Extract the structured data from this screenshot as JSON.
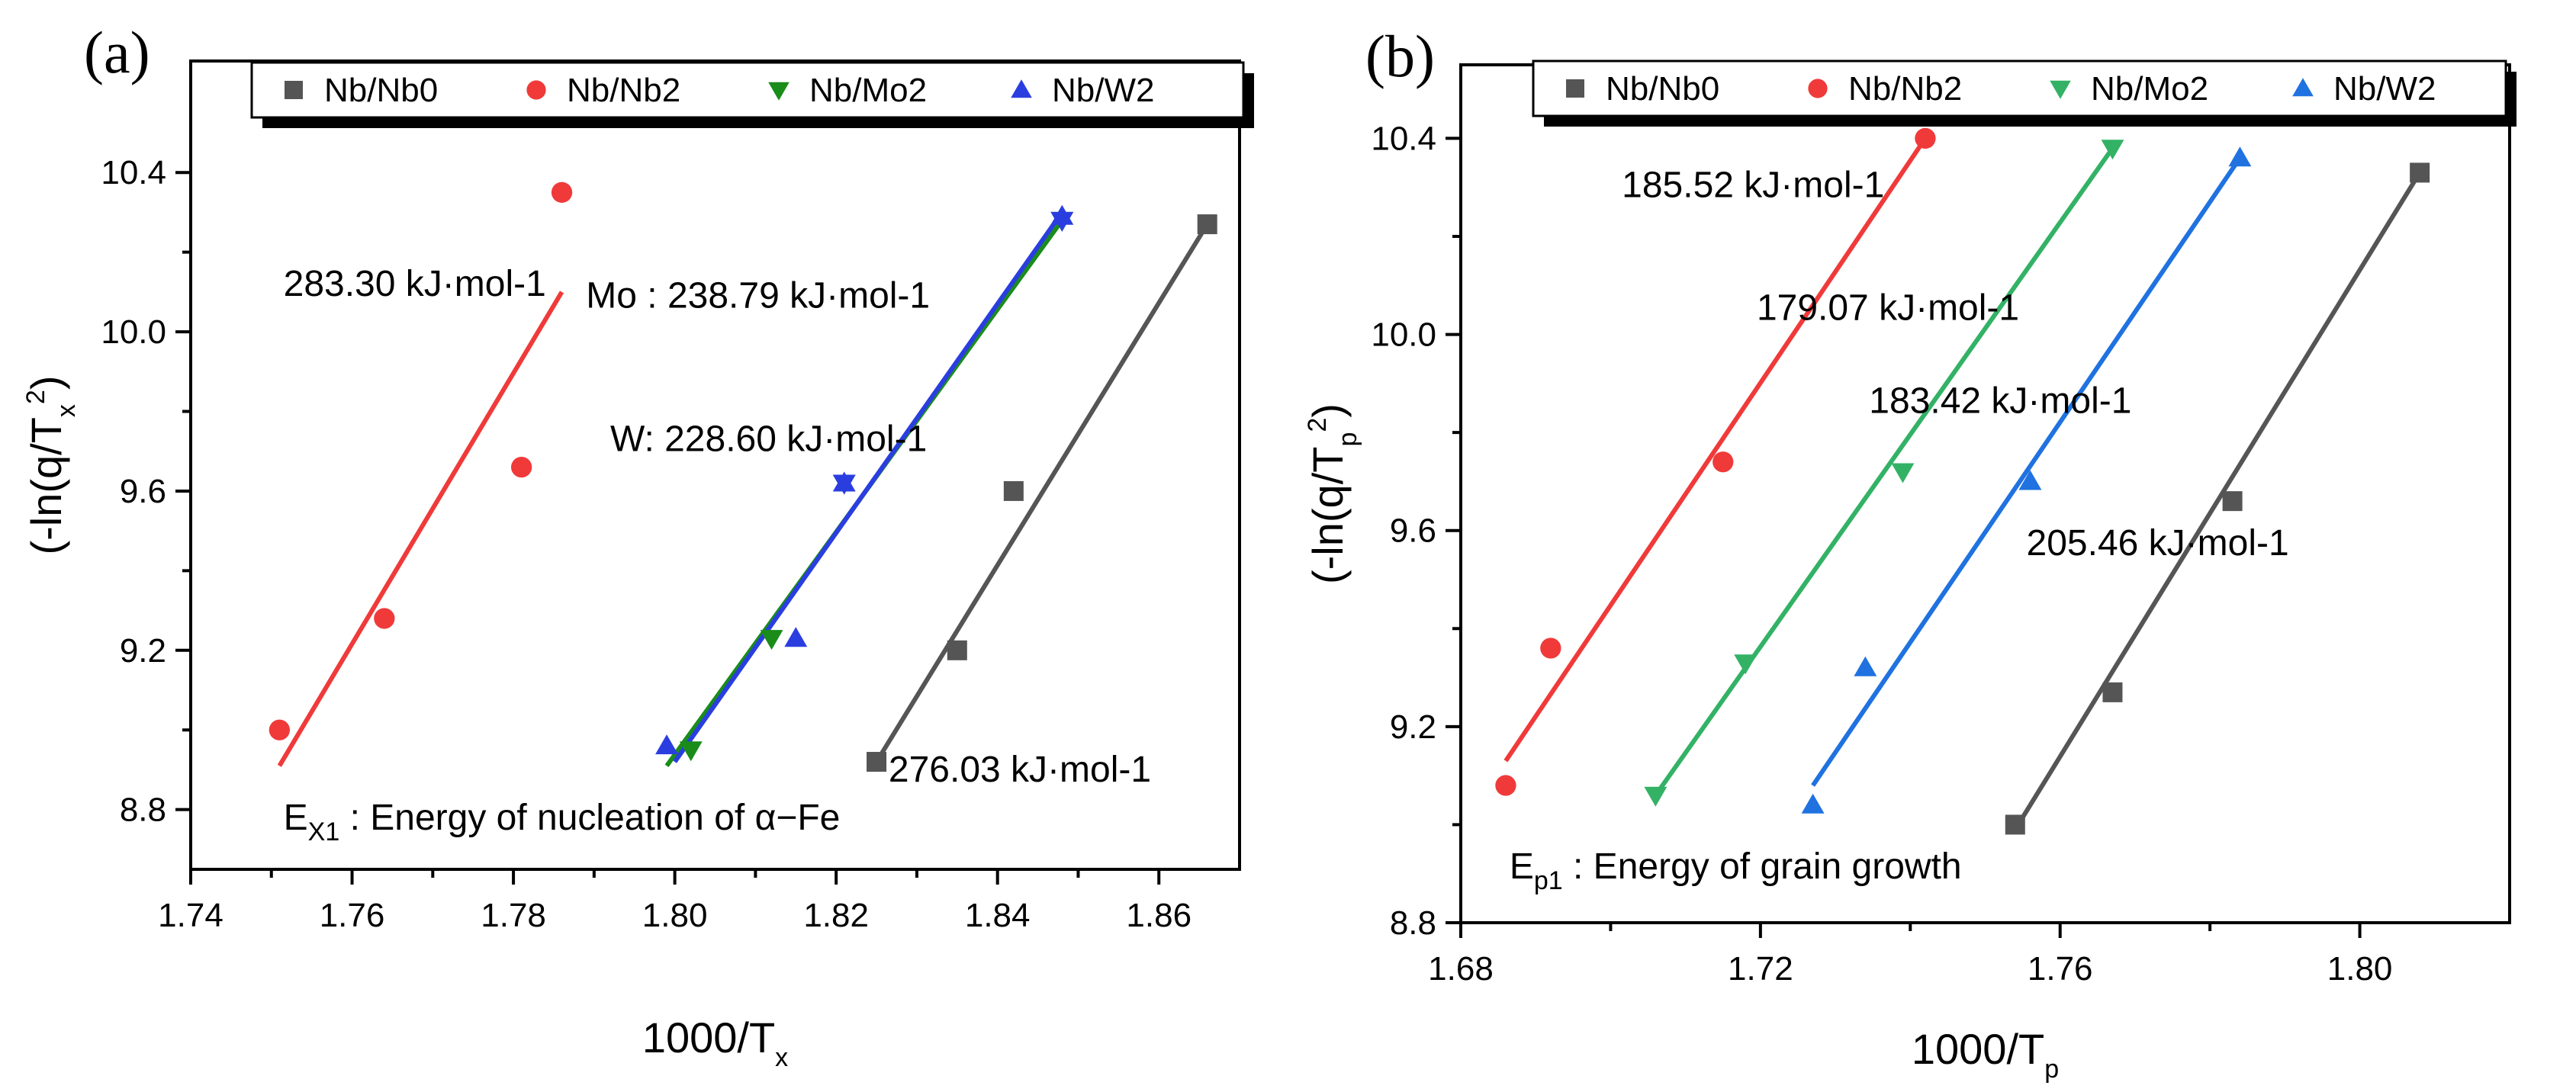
{
  "chart_data": [
    {
      "type": "scatter",
      "panel_label": "(a)",
      "xlabel": "1000/T",
      "xlabel_sub": "x",
      "ylabel_prefix": "(-ln(q/T",
      "ylabel_sup": "2",
      "ylabel_sub": "x",
      "ylabel_suffix": ")",
      "xlim": [
        1.74,
        1.87
      ],
      "ylim": [
        8.65,
        10.68
      ],
      "xticks": [
        1.74,
        1.76,
        1.78,
        1.8,
        1.82,
        1.84,
        1.86
      ],
      "xtick_labels": [
        "1.74",
        "1.76",
        "1.78",
        "1.80",
        "1.82",
        "1.84",
        "1.86"
      ],
      "yticks": [
        8.8,
        9.2,
        9.6,
        10.0,
        10.4
      ],
      "ytick_labels": [
        "8.8",
        "9.2",
        "9.6",
        "10.0",
        "10.4"
      ],
      "legend": {
        "position": "top",
        "entries": [
          {
            "name": "Nb/Nb0",
            "marker": "square",
            "color": "#555555"
          },
          {
            "name": "Nb/Nb2",
            "marker": "circle",
            "color": "#f03a3a"
          },
          {
            "name": "Nb/Mo2",
            "marker": "triangle-down",
            "color": "#1a8c1a"
          },
          {
            "name": "Nb/W2",
            "marker": "triangle-up",
            "color": "#2a3ee0"
          }
        ]
      },
      "series": [
        {
          "name": "Nb/Nb0",
          "marker": "square",
          "color": "#555555",
          "x": [
            1.825,
            1.835,
            1.842,
            1.866
          ],
          "y": [
            8.92,
            9.2,
            9.6,
            10.27
          ],
          "fit": {
            "x": [
              1.825,
              1.866
            ],
            "y": [
              8.92,
              10.27
            ]
          }
        },
        {
          "name": "Nb/Nb2",
          "marker": "circle",
          "color": "#f03a3a",
          "x": [
            1.751,
            1.764,
            1.781,
            1.786
          ],
          "y": [
            9.0,
            9.28,
            9.66,
            10.35
          ],
          "fit": {
            "x": [
              1.751,
              1.786
            ],
            "y": [
              8.91,
              10.1
            ]
          }
        },
        {
          "name": "Nb/Mo2",
          "marker": "triangle-down",
          "color": "#1a8c1a",
          "x": [
            1.802,
            1.812,
            1.821,
            1.848
          ],
          "y": [
            8.95,
            9.23,
            9.62,
            10.28
          ],
          "fit": {
            "x": [
              1.799,
              1.848
            ],
            "y": [
              8.91,
              10.28
            ]
          }
        },
        {
          "name": "Nb/W2",
          "marker": "triangle-up",
          "color": "#2a3ee0",
          "x": [
            1.799,
            1.815,
            1.821,
            1.848
          ],
          "y": [
            8.96,
            9.23,
            9.62,
            10.29
          ],
          "fit": {
            "x": [
              1.8,
              1.848
            ],
            "y": [
              8.92,
              10.3
            ]
          }
        }
      ],
      "annotations": [
        {
          "text": "283.30  kJ·mol-1",
          "x": 1.7515,
          "y": 10.09
        },
        {
          "text": "Mo : 238.79  kJ·mol-1",
          "x": 1.789,
          "y": 10.06
        },
        {
          "text": "W: 228.60 kJ·mol-1",
          "x": 1.792,
          "y": 9.7
        },
        {
          "text": "276.03  kJ·mol-1",
          "x": 1.8265,
          "y": 8.87
        }
      ],
      "footnote": {
        "main": "E",
        "sub": "X1",
        "rest": " : Energy of nucleation of α−Fe",
        "x": 1.7515,
        "y": 8.75
      }
    },
    {
      "type": "scatter",
      "panel_label": "(b)",
      "xlabel": "1000/T",
      "xlabel_sub": "p",
      "ylabel_prefix": "(-ln(q/T",
      "ylabel_sup": "2",
      "ylabel_sub": "p",
      "ylabel_suffix": ")",
      "xlim": [
        1.68,
        1.82
      ],
      "ylim": [
        8.8,
        10.55
      ],
      "xticks": [
        1.68,
        1.72,
        1.76,
        1.8
      ],
      "xtick_labels": [
        "1.68",
        "1.72",
        "1.76",
        "1.80"
      ],
      "yticks": [
        8.8,
        9.2,
        9.6,
        10.0,
        10.4
      ],
      "ytick_labels": [
        "8.8",
        "9.2",
        "9.6",
        "10.0",
        "10.4"
      ],
      "legend": {
        "position": "top",
        "entries": [
          {
            "name": "Nb/Nb0",
            "marker": "square",
            "color": "#555555"
          },
          {
            "name": "Nb/Nb2",
            "marker": "circle",
            "color": "#f03a3a"
          },
          {
            "name": "Nb/Mo2",
            "marker": "triangle-down",
            "color": "#33b266"
          },
          {
            "name": "Nb/W2",
            "marker": "triangle-up",
            "color": "#1f72e0"
          }
        ]
      },
      "series": [
        {
          "name": "Nb/Nb0",
          "marker": "square",
          "color": "#555555",
          "x": [
            1.754,
            1.767,
            1.783,
            1.808
          ],
          "y": [
            9.0,
            9.27,
            9.66,
            10.33
          ],
          "fit": {
            "x": [
              1.754,
              1.808
            ],
            "y": [
              8.99,
              10.33
            ]
          }
        },
        {
          "name": "Nb/Nb2",
          "marker": "circle",
          "color": "#f03a3a",
          "x": [
            1.686,
            1.692,
            1.715,
            1.742
          ],
          "y": [
            9.08,
            9.36,
            9.74,
            10.4
          ],
          "fit": {
            "x": [
              1.686,
              1.742
            ],
            "y": [
              9.13,
              10.4
            ]
          }
        },
        {
          "name": "Nb/Mo2",
          "marker": "triangle-down",
          "color": "#33b266",
          "x": [
            1.706,
            1.718,
            1.739,
            1.767
          ],
          "y": [
            9.06,
            9.33,
            9.72,
            10.38
          ],
          "fit": {
            "x": [
              1.706,
              1.767
            ],
            "y": [
              9.06,
              10.38
            ]
          }
        },
        {
          "name": "Nb/W2",
          "marker": "triangle-up",
          "color": "#1f72e0",
          "x": [
            1.727,
            1.734,
            1.756,
            1.784
          ],
          "y": [
            9.04,
            9.32,
            9.7,
            10.36
          ],
          "fit": {
            "x": [
              1.727,
              1.784
            ],
            "y": [
              9.08,
              10.36
            ]
          }
        }
      ],
      "annotations": [
        {
          "text": "185.52  kJ·mol-1",
          "x": 1.7015,
          "y": 10.28
        },
        {
          "text": "179.07  kJ·mol-1",
          "x": 1.7195,
          "y": 10.03
        },
        {
          "text": "183.42  kJ·mol-1",
          "x": 1.7345,
          "y": 9.84
        },
        {
          "text": "205.46  kJ·mol-1",
          "x": 1.7555,
          "y": 9.55
        }
      ],
      "footnote": {
        "main": "E",
        "sub": "p1",
        "rest": " : Energy of grain growth",
        "x": 1.6865,
        "y": 8.89
      }
    }
  ]
}
